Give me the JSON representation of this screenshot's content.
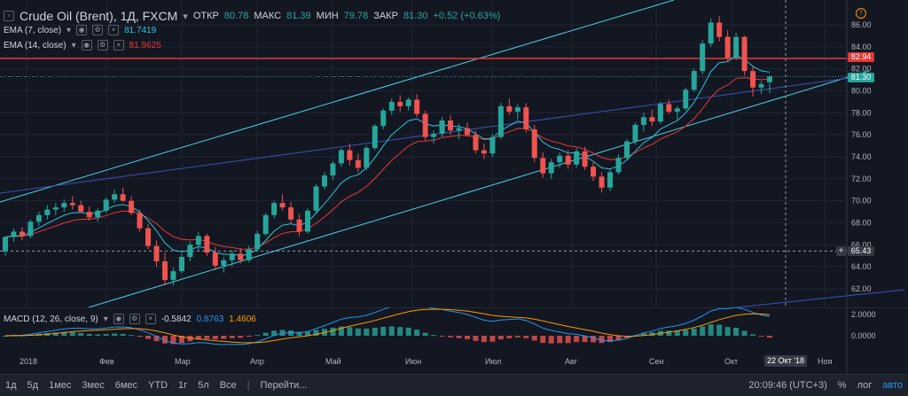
{
  "header": {
    "symbol": "Crude Oil (Brent), 1Д, FXCM",
    "open_label": "ОТКР",
    "open": "80.78",
    "high_label": "МАКС",
    "high": "81.39",
    "low_label": "МИН",
    "low": "79.78",
    "close_label": "ЗАКР",
    "close": "81.30",
    "change": "+0.52 (+0.63%)"
  },
  "indicators": {
    "ema7_label": "EMA (7, close)",
    "ema7_value": "81.7419",
    "ema14_label": "EMA (14, close)",
    "ema14_value": "81.9625",
    "macd_label": "MACD (12, 26, close, 9)",
    "macd_hist": "-0.5842",
    "macd_signal": "0.8763",
    "macd_value": "1.4606"
  },
  "price_tags": {
    "resistance": "82.94",
    "last": "81.30",
    "support": "65.43"
  },
  "crosshair_date": "22 Окт '18",
  "bottom_bar": {
    "ranges": [
      "1д",
      "5д",
      "1мес",
      "3мес",
      "6мес",
      "YTD",
      "1г",
      "5л",
      "Все"
    ],
    "goto": "Перейти...",
    "time": "20:09:46 (UTC+3)",
    "percent": "%",
    "log": "лог",
    "auto": "авто"
  },
  "colors": {
    "up": "#26a69a",
    "down": "#ef5350",
    "ema7": "#26c6da",
    "ema14": "#e53935",
    "channel": "#4dd0e1",
    "trend": "#3f51b5",
    "resistance": "#e53935"
  },
  "chart_data": {
    "type": "candlestick",
    "y_ticks": [
      "86.00",
      "84.00",
      "82.00",
      "80.00",
      "78.00",
      "76.00",
      "74.00",
      "72.00",
      "70.00",
      "68.00",
      "66.00",
      "64.00",
      "62.00"
    ],
    "x_ticks": [
      "2018",
      "Фев",
      "Мар",
      "Апр",
      "Май",
      "Июн",
      "Июл",
      "Авг",
      "Сен",
      "Окт",
      "Ноя"
    ],
    "macd_ticks": [
      "2.0000",
      "0.0000"
    ],
    "ohlc": [
      [
        65.4,
        66.8,
        65.0,
        66.7
      ],
      [
        66.7,
        67.5,
        66.3,
        67.2
      ],
      [
        67.2,
        67.6,
        66.4,
        66.8
      ],
      [
        66.8,
        68.3,
        66.6,
        68.1
      ],
      [
        68.1,
        69.0,
        67.7,
        68.7
      ],
      [
        68.7,
        69.6,
        68.3,
        69.2
      ],
      [
        69.2,
        69.8,
        68.7,
        69.4
      ],
      [
        69.4,
        70.1,
        69.0,
        69.8
      ],
      [
        69.8,
        70.4,
        69.2,
        69.6
      ],
      [
        69.6,
        70.0,
        68.9,
        69.0
      ],
      [
        69.0,
        69.5,
        68.2,
        68.5
      ],
      [
        68.5,
        69.3,
        68.1,
        69.1
      ],
      [
        69.1,
        70.3,
        68.9,
        70.1
      ],
      [
        70.1,
        71.0,
        69.8,
        70.6
      ],
      [
        70.6,
        71.2,
        69.9,
        70.0
      ],
      [
        70.0,
        70.4,
        68.7,
        68.9
      ],
      [
        68.9,
        69.2,
        67.2,
        67.5
      ],
      [
        67.5,
        67.9,
        65.6,
        65.9
      ],
      [
        65.9,
        66.4,
        64.0,
        64.5
      ],
      [
        64.5,
        65.3,
        62.3,
        62.8
      ],
      [
        62.8,
        63.9,
        62.3,
        63.6
      ],
      [
        63.6,
        65.2,
        63.4,
        64.9
      ],
      [
        64.9,
        66.3,
        64.5,
        66.0
      ],
      [
        66.0,
        67.2,
        65.5,
        66.8
      ],
      [
        66.8,
        67.0,
        65.0,
        65.3
      ],
      [
        65.3,
        65.8,
        63.7,
        64.1
      ],
      [
        64.1,
        64.9,
        63.5,
        64.6
      ],
      [
        64.6,
        65.5,
        64.0,
        65.2
      ],
      [
        65.2,
        65.7,
        64.3,
        64.6
      ],
      [
        64.6,
        65.9,
        64.4,
        65.6
      ],
      [
        65.6,
        67.3,
        65.4,
        67.0
      ],
      [
        67.0,
        68.9,
        66.8,
        68.7
      ],
      [
        68.7,
        70.0,
        68.4,
        69.8
      ],
      [
        69.8,
        70.6,
        69.1,
        69.4
      ],
      [
        69.4,
        69.9,
        68.0,
        68.3
      ],
      [
        68.3,
        68.8,
        66.8,
        67.2
      ],
      [
        67.2,
        69.3,
        67.0,
        69.1
      ],
      [
        69.1,
        71.5,
        68.9,
        71.3
      ],
      [
        71.3,
        72.6,
        71.0,
        72.3
      ],
      [
        72.3,
        73.6,
        71.9,
        73.4
      ],
      [
        73.4,
        74.8,
        73.1,
        74.6
      ],
      [
        74.6,
        75.2,
        73.2,
        73.7
      ],
      [
        73.7,
        74.3,
        72.6,
        73.0
      ],
      [
        73.0,
        75.0,
        72.8,
        74.8
      ],
      [
        74.8,
        77.0,
        74.6,
        76.8
      ],
      [
        76.8,
        78.4,
        76.5,
        78.2
      ],
      [
        78.2,
        79.3,
        77.8,
        79.0
      ],
      [
        79.0,
        79.6,
        78.1,
        78.6
      ],
      [
        78.6,
        79.4,
        78.2,
        79.2
      ],
      [
        79.2,
        79.7,
        77.6,
        77.9
      ],
      [
        77.9,
        78.2,
        75.5,
        75.8
      ],
      [
        75.8,
        76.4,
        75.2,
        76.1
      ],
      [
        76.1,
        77.6,
        75.8,
        77.3
      ],
      [
        77.3,
        77.8,
        76.0,
        76.4
      ],
      [
        76.4,
        77.0,
        75.6,
        76.6
      ],
      [
        76.6,
        77.1,
        75.8,
        76.0
      ],
      [
        76.0,
        76.4,
        74.3,
        74.6
      ],
      [
        74.6,
        75.2,
        73.8,
        74.3
      ],
      [
        74.3,
        76.1,
        74.0,
        75.8
      ],
      [
        75.8,
        78.9,
        75.6,
        78.6
      ],
      [
        78.6,
        79.3,
        77.8,
        78.1
      ],
      [
        78.1,
        78.8,
        77.4,
        78.5
      ],
      [
        78.5,
        78.9,
        76.2,
        76.5
      ],
      [
        76.5,
        76.9,
        73.5,
        73.9
      ],
      [
        73.9,
        74.4,
        72.1,
        72.5
      ],
      [
        72.5,
        73.8,
        72.0,
        73.5
      ],
      [
        73.5,
        74.4,
        73.0,
        74.1
      ],
      [
        74.1,
        74.6,
        72.9,
        73.3
      ],
      [
        73.3,
        74.8,
        73.0,
        74.5
      ],
      [
        74.5,
        74.9,
        72.8,
        73.1
      ],
      [
        73.1,
        73.5,
        71.8,
        72.2
      ],
      [
        72.2,
        72.6,
        70.8,
        71.2
      ],
      [
        71.2,
        72.9,
        70.9,
        72.6
      ],
      [
        72.6,
        74.2,
        72.4,
        73.9
      ],
      [
        73.9,
        75.6,
        73.7,
        75.4
      ],
      [
        75.4,
        77.1,
        75.1,
        76.9
      ],
      [
        76.9,
        78.0,
        76.3,
        77.6
      ],
      [
        77.6,
        78.3,
        76.8,
        77.2
      ],
      [
        77.2,
        79.0,
        77.0,
        78.8
      ],
      [
        78.8,
        79.2,
        77.9,
        78.1
      ],
      [
        78.1,
        78.6,
        77.4,
        78.4
      ],
      [
        78.4,
        80.3,
        78.2,
        80.1
      ],
      [
        80.1,
        82.0,
        79.9,
        81.8
      ],
      [
        81.8,
        84.6,
        81.5,
        84.3
      ],
      [
        84.3,
        86.6,
        84.0,
        86.2
      ],
      [
        86.2,
        86.8,
        84.5,
        84.9
      ],
      [
        84.9,
        85.5,
        82.6,
        83.0
      ],
      [
        83.0,
        85.3,
        82.8,
        84.9
      ],
      [
        84.9,
        85.0,
        81.4,
        81.8
      ],
      [
        81.8,
        82.2,
        79.5,
        80.3
      ],
      [
        80.3,
        80.9,
        79.7,
        80.6
      ],
      [
        80.78,
        81.39,
        79.78,
        81.3
      ]
    ]
  }
}
